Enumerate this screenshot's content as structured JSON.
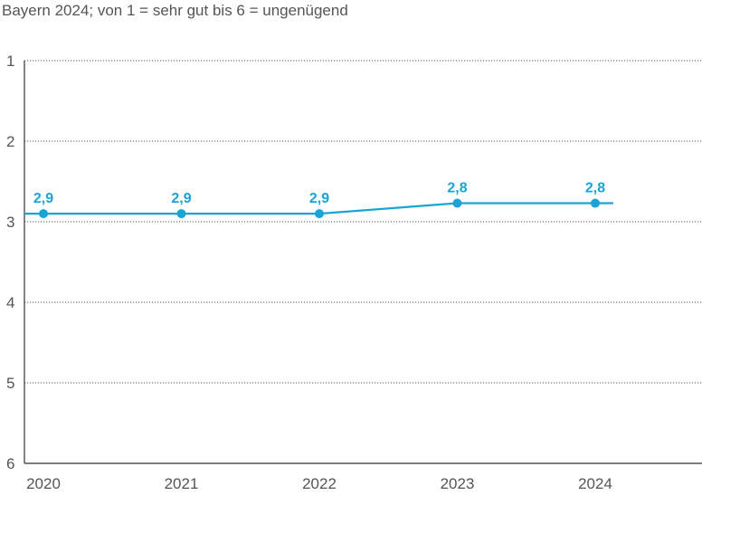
{
  "chart_data": {
    "type": "line",
    "title": "",
    "subtitle": "Bayern 2024; von 1 = sehr gut bis 6 = ungenügend",
    "xlabel": "",
    "ylabel": "",
    "categories": [
      "2020",
      "2021",
      "2022",
      "2023",
      "2024"
    ],
    "series": [
      {
        "values": [
          2.9,
          2.9,
          2.9,
          2.77,
          2.77
        ],
        "labels": [
          "2,9",
          "2,9",
          "2,9",
          "2,8",
          "2,8"
        ]
      }
    ],
    "yticks": [
      "1",
      "2",
      "3",
      "4",
      "5",
      "6"
    ],
    "ylim": [
      1,
      6
    ],
    "y_inverted": true,
    "grid": "dotted-horizontal",
    "legend": "none",
    "colors": {
      "line": "#1aa3d4",
      "label": "#1aa3d4",
      "axis": "#333333",
      "grid": "#555555",
      "text": "#555555"
    }
  }
}
